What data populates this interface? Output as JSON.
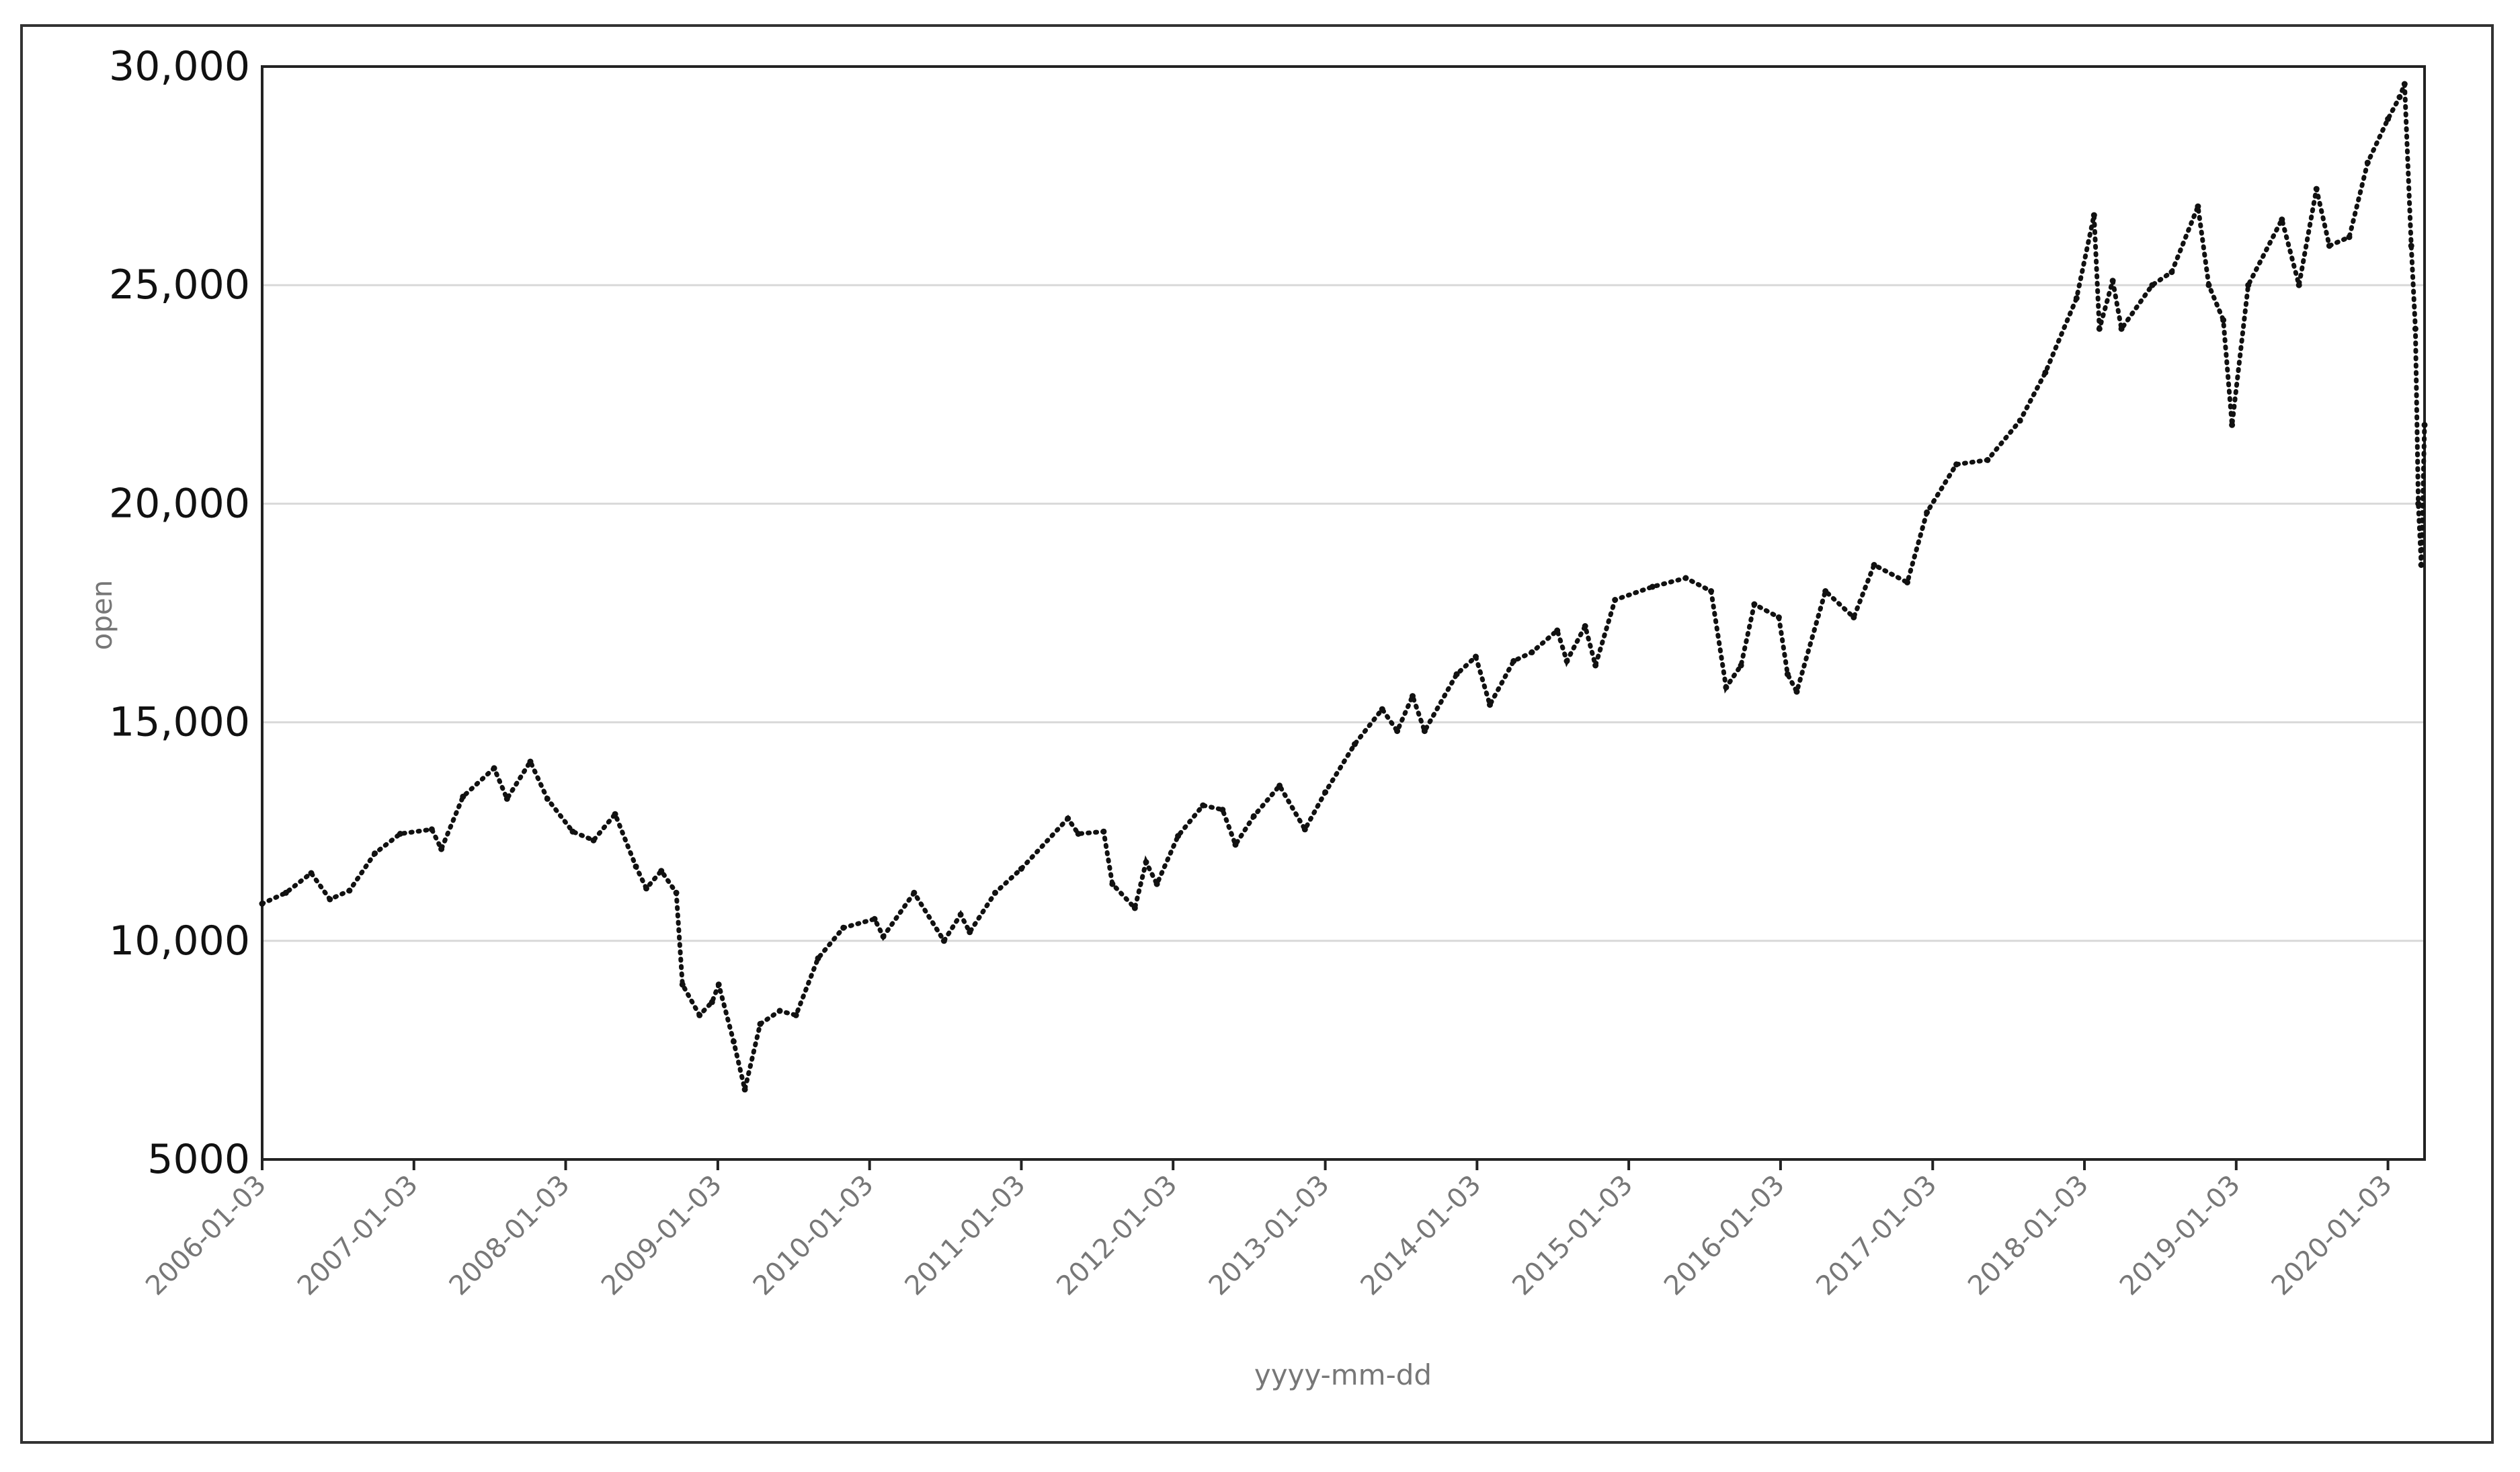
{
  "chart_data": {
    "type": "line",
    "line_style": "dotted",
    "line_color": "#111111",
    "gridline_color": "#d9d9d9",
    "grid": "horizontal",
    "legend": "none",
    "xlabel": "yyyy-mm-dd",
    "ylabel": "open",
    "xlim": [
      "2006-01-03",
      "2020-03-31"
    ],
    "ylim": [
      5000,
      30000
    ],
    "x_ticks": [
      "2006-01-03",
      "2007-01-03",
      "2008-01-03",
      "2009-01-03",
      "2010-01-03",
      "2011-01-03",
      "2012-01-03",
      "2013-01-03",
      "2014-01-03",
      "2015-01-03",
      "2016-01-03",
      "2017-01-03",
      "2018-01-03",
      "2019-01-03",
      "2020-01-03"
    ],
    "y_ticks": [
      {
        "value": 5000,
        "label": "5000"
      },
      {
        "value": 10000,
        "label": "10,000"
      },
      {
        "value": 15000,
        "label": "15,000"
      },
      {
        "value": 20000,
        "label": "20,000"
      },
      {
        "value": 25000,
        "label": "25,000"
      },
      {
        "value": 30000,
        "label": "30,000"
      }
    ],
    "series": [
      {
        "x": [
          "2006-01-03",
          "2006-03-01",
          "2006-05-01",
          "2006-06-15",
          "2006-08-01",
          "2006-10-01",
          "2006-12-01",
          "2007-02-15",
          "2007-03-10",
          "2007-05-01",
          "2007-07-15",
          "2007-08-15",
          "2007-10-10",
          "2007-11-20",
          "2008-01-20",
          "2008-03-10",
          "2008-05-01",
          "2008-06-20",
          "2008-07-15",
          "2008-08-20",
          "2008-09-25",
          "2008-10-10",
          "2008-11-20",
          "2008-12-20",
          "2009-01-05",
          "2009-02-10",
          "2009-03-09",
          "2009-04-15",
          "2009-06-01",
          "2009-07-10",
          "2009-09-01",
          "2009-11-01",
          "2010-01-15",
          "2010-02-05",
          "2010-04-20",
          "2010-07-01",
          "2010-08-10",
          "2010-09-01",
          "2010-11-01",
          "2011-01-03",
          "2011-04-25",
          "2011-05-20",
          "2011-07-20",
          "2011-08-10",
          "2011-10-03",
          "2011-10-30",
          "2011-11-25",
          "2012-01-15",
          "2012-03-15",
          "2012-05-01",
          "2012-06-01",
          "2012-07-15",
          "2012-09-15",
          "2012-11-15",
          "2013-01-03",
          "2013-03-15",
          "2013-05-20",
          "2013-06-25",
          "2013-08-01",
          "2013-08-30",
          "2013-11-15",
          "2013-12-31",
          "2014-02-03",
          "2014-04-01",
          "2014-05-15",
          "2014-07-15",
          "2014-08-07",
          "2014-09-20",
          "2014-10-15",
          "2014-12-01",
          "2015-03-01",
          "2015-05-20",
          "2015-07-20",
          "2015-08-25",
          "2015-09-30",
          "2015-11-01",
          "2015-12-30",
          "2016-01-20",
          "2016-02-11",
          "2016-04-20",
          "2016-06-27",
          "2016-08-15",
          "2016-11-03",
          "2016-12-20",
          "2017-03-01",
          "2017-05-15",
          "2017-08-01",
          "2017-10-01",
          "2017-12-15",
          "2018-01-26",
          "2018-02-08",
          "2018-03-12",
          "2018-04-02",
          "2018-06-15",
          "2018-08-01",
          "2018-10-03",
          "2018-10-29",
          "2018-12-03",
          "2018-12-24",
          "2019-02-01",
          "2019-04-23",
          "2019-06-03",
          "2019-07-15",
          "2019-08-15",
          "2019-10-02",
          "2019-11-15",
          "2020-01-03",
          "2020-01-31",
          "2020-02-12",
          "2020-02-28",
          "2020-03-09",
          "2020-03-16",
          "2020-03-23",
          "2020-03-31"
        ],
        "y": [
          10850,
          11100,
          11550,
          10950,
          11150,
          12000,
          12450,
          12550,
          12100,
          13300,
          13950,
          13250,
          14100,
          13250,
          12500,
          12300,
          12900,
          11700,
          11200,
          11600,
          11100,
          9000,
          8300,
          8600,
          9000,
          7700,
          6600,
          8100,
          8400,
          8300,
          9600,
          10300,
          10500,
          10100,
          11100,
          10000,
          10600,
          10200,
          11100,
          11650,
          12800,
          12450,
          12500,
          11300,
          10750,
          11800,
          11300,
          12400,
          13100,
          13000,
          12200,
          12850,
          13550,
          12550,
          13400,
          14500,
          15300,
          14800,
          15600,
          14800,
          16100,
          16500,
          15400,
          16400,
          16600,
          17100,
          16400,
          17200,
          16300,
          17800,
          18100,
          18300,
          18000,
          15800,
          16300,
          17700,
          17400,
          16100,
          15700,
          18000,
          17400,
          18600,
          18200,
          19800,
          20900,
          21000,
          21900,
          23000,
          24700,
          26600,
          24000,
          25100,
          24000,
          25000,
          25300,
          26800,
          25000,
          24200,
          21800,
          25000,
          26500,
          25000,
          27200,
          25900,
          26100,
          27800,
          28800,
          29300,
          29600,
          25900,
          24000,
          20000,
          18600,
          21800
        ]
      }
    ]
  }
}
